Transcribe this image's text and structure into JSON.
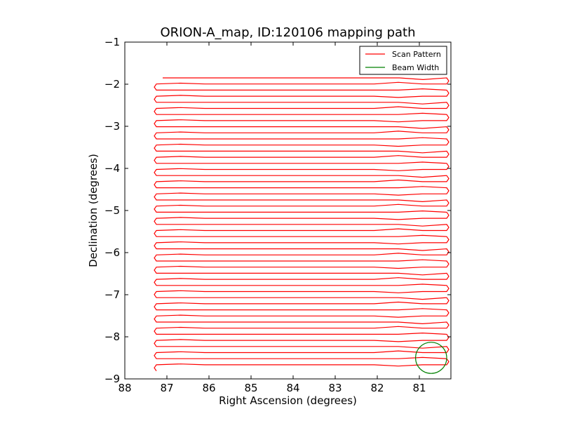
{
  "chart_data": {
    "type": "line",
    "title": "ORION-A_map, ID:120106 mapping path",
    "xlabel": "Right Ascension (degrees)",
    "ylabel": "Declination (degrees)",
    "xlim": [
      88,
      80.25
    ],
    "ylim": [
      -9,
      -1
    ],
    "xticks": [
      88,
      87,
      86,
      85,
      84,
      83,
      82,
      81
    ],
    "yticks": [
      -1,
      -2,
      -3,
      -4,
      -5,
      -6,
      -7,
      -8,
      -9
    ],
    "x_inverted": true,
    "grid": false,
    "legend": {
      "location": "upper right",
      "entries": [
        {
          "label": "Scan Pattern",
          "color": "#ff0000"
        },
        {
          "label": "Beam Width",
          "color": "#008000"
        }
      ]
    },
    "scan_pattern": {
      "color": "#ff0000",
      "ra_west_turn": 87.3,
      "ra_west_end": 87.25,
      "ra_east_turn": 80.3,
      "ra_east_end": 80.35,
      "first_leg_start_ra": 87.1,
      "dec_start": -1.85,
      "dec_end": -8.8,
      "leg_spacing_deg": 0.145,
      "num_legs": 49
    },
    "beam_width": {
      "color": "#008000",
      "center_ra": 80.72,
      "center_dec": -8.5,
      "radius_deg": 0.37
    }
  }
}
